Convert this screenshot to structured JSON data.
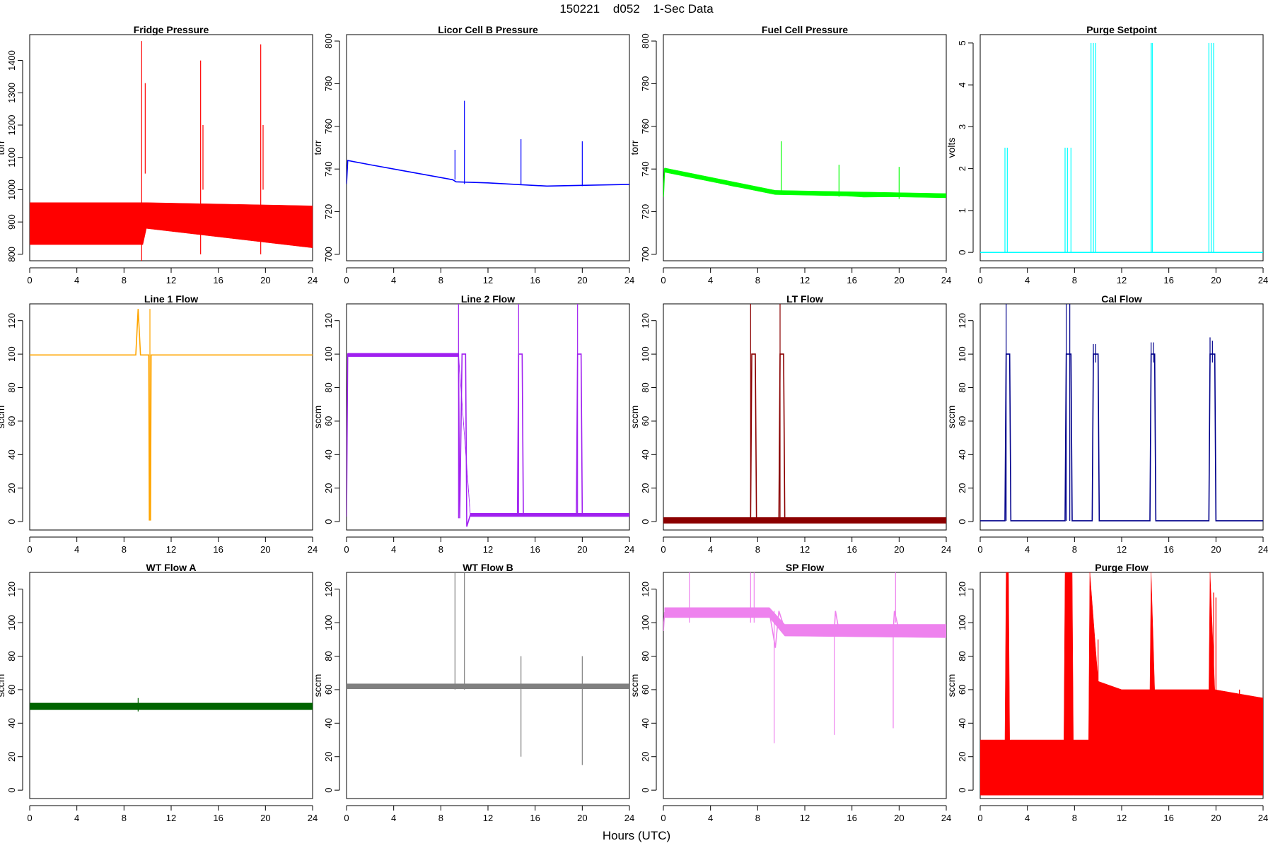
{
  "figure": {
    "title": "150221    d052    1-Sec Data",
    "xlabel": "Hours (UTC)"
  },
  "chart_data": [
    {
      "type": "line",
      "title": "Fridge Pressure",
      "ylabel": "torr",
      "color": "#ff0000",
      "xlim": [
        0,
        24
      ],
      "ylim": [
        780,
        1480
      ],
      "xticks": [
        0,
        4,
        8,
        12,
        16,
        20,
        24
      ],
      "yticks": [
        800,
        900,
        1000,
        1100,
        1200,
        1300,
        1400
      ],
      "base": [
        [
          0,
          900
        ],
        [
          24,
          900
        ]
      ],
      "band": [
        [
          0,
          830,
          960
        ],
        [
          9.6,
          830,
          960
        ],
        [
          9.9,
          880,
          960
        ],
        [
          24,
          820,
          950
        ]
      ],
      "spikes": [
        [
          9.5,
          780,
          1460
        ],
        [
          9.8,
          1050,
          1330
        ],
        [
          14.5,
          800,
          1400
        ],
        [
          14.7,
          1000,
          1200
        ],
        [
          19.6,
          800,
          1450
        ],
        [
          19.8,
          1000,
          1200
        ]
      ]
    },
    {
      "type": "line",
      "title": "Licor Cell B Pressure",
      "ylabel": "torr",
      "color": "#0000ff",
      "xlim": [
        0,
        24
      ],
      "ylim": [
        697,
        803
      ],
      "xticks": [
        0,
        4,
        8,
        12,
        16,
        20,
        24
      ],
      "yticks": [
        700,
        720,
        740,
        760,
        780,
        800
      ],
      "base": [
        [
          0,
          733
        ],
        [
          0.1,
          744
        ],
        [
          2,
          742
        ],
        [
          5,
          739
        ],
        [
          9,
          735
        ],
        [
          9.3,
          734
        ],
        [
          12,
          733.5
        ],
        [
          17,
          732
        ],
        [
          24,
          732.8
        ]
      ],
      "band": [],
      "spikes": [
        [
          9.2,
          735,
          749
        ],
        [
          10,
          733,
          772
        ],
        [
          14.8,
          733,
          754
        ],
        [
          20,
          732,
          753
        ]
      ]
    },
    {
      "type": "line",
      "title": "Fuel Cell Pressure",
      "ylabel": "torr",
      "color": "#00ff00",
      "xlim": [
        0,
        24
      ],
      "ylim": [
        697,
        803
      ],
      "xticks": [
        0,
        4,
        8,
        12,
        16,
        20,
        24
      ],
      "yticks": [
        700,
        720,
        740,
        760,
        780,
        800
      ],
      "base": [
        [
          0,
          727
        ],
        [
          0.1,
          740
        ],
        [
          2,
          737
        ],
        [
          6,
          732
        ],
        [
          9.5,
          729
        ],
        [
          12,
          729
        ],
        [
          17,
          727
        ],
        [
          24,
          727.5
        ]
      ],
      "band": [
        [
          0.1,
          738.5,
          740.5
        ],
        [
          9.5,
          728,
          730
        ],
        [
          24,
          726.5,
          728.5
        ]
      ],
      "spikes": [
        [
          10,
          728,
          753
        ],
        [
          14.9,
          727,
          742
        ],
        [
          20,
          726,
          741
        ]
      ]
    },
    {
      "type": "line",
      "title": "Purge Setpoint",
      "ylabel": "volts",
      "color": "#00ffff",
      "xlim": [
        0,
        24
      ],
      "ylim": [
        -0.2,
        5.2
      ],
      "xticks": [
        0,
        4,
        8,
        12,
        16,
        20,
        24
      ],
      "yticks": [
        0,
        1,
        2,
        3,
        4,
        5
      ],
      "base": [
        [
          0,
          0
        ],
        [
          24,
          0
        ]
      ],
      "band": [],
      "spikes": [
        [
          2.1,
          0,
          2.5
        ],
        [
          2.3,
          0,
          2.5
        ],
        [
          7.2,
          0,
          2.5
        ],
        [
          7.4,
          0,
          2.5
        ],
        [
          7.7,
          0,
          2.5
        ],
        [
          9.4,
          0,
          5
        ],
        [
          9.6,
          0,
          5
        ],
        [
          9.8,
          0,
          5
        ],
        [
          14.5,
          0,
          5
        ],
        [
          14.6,
          0,
          5
        ],
        [
          19.4,
          0,
          5
        ],
        [
          19.6,
          0,
          5
        ],
        [
          19.8,
          0,
          5
        ]
      ]
    },
    {
      "type": "line",
      "title": "Line 1 Flow",
      "ylabel": "sccm",
      "color": "#ffa500",
      "xlim": [
        0,
        24
      ],
      "ylim": [
        -5,
        130
      ],
      "xticks": [
        0,
        4,
        8,
        12,
        16,
        20,
        24
      ],
      "yticks": [
        0,
        20,
        40,
        60,
        80,
        100,
        120
      ],
      "base": [
        [
          0,
          99.5
        ],
        [
          9,
          99.5
        ],
        [
          9.2,
          127
        ],
        [
          9.4,
          99.5
        ],
        [
          10.1,
          99.5
        ],
        [
          10.15,
          1
        ],
        [
          10.25,
          1
        ],
        [
          10.3,
          99.5
        ],
        [
          24,
          99.5
        ]
      ],
      "band": [],
      "spikes": [
        [
          10.2,
          1,
          127
        ]
      ]
    },
    {
      "type": "line",
      "title": "Line 2 Flow",
      "ylabel": "sccm",
      "color": "#a020f0",
      "xlim": [
        0,
        24
      ],
      "ylim": [
        -5,
        130
      ],
      "xticks": [
        0,
        4,
        8,
        12,
        16,
        20,
        24
      ],
      "yticks": [
        0,
        20,
        40,
        60,
        80,
        100,
        120
      ],
      "base": [
        [
          0,
          3
        ],
        [
          0.1,
          100
        ],
        [
          9.5,
          100
        ],
        [
          9.6,
          2
        ],
        [
          9.8,
          100
        ],
        [
          10.1,
          100
        ],
        [
          10.2,
          -3
        ],
        [
          10.5,
          4
        ],
        [
          14.5,
          4
        ],
        [
          14.6,
          100
        ],
        [
          14.9,
          100
        ],
        [
          15,
          4
        ],
        [
          19.5,
          4
        ],
        [
          19.6,
          100
        ],
        [
          19.9,
          100
        ],
        [
          20,
          4
        ],
        [
          24,
          4
        ]
      ],
      "band": [
        [
          0.1,
          98.5,
          100.5
        ],
        [
          9.5,
          98.5,
          100.5
        ],
        [
          10.5,
          3,
          5
        ],
        [
          24,
          3,
          5
        ]
      ],
      "spikes": [
        [
          9.5,
          2,
          130
        ],
        [
          14.6,
          4,
          130
        ],
        [
          19.6,
          4,
          130
        ]
      ]
    },
    {
      "type": "line",
      "title": "LT Flow",
      "ylabel": "sccm",
      "color": "#8b0000",
      "xlim": [
        0,
        24
      ],
      "ylim": [
        -5,
        130
      ],
      "xticks": [
        0,
        4,
        8,
        12,
        16,
        20,
        24
      ],
      "yticks": [
        0,
        20,
        40,
        60,
        80,
        100,
        120
      ],
      "base": [
        [
          0,
          1
        ],
        [
          7.4,
          1
        ],
        [
          7.5,
          100
        ],
        [
          7.8,
          100
        ],
        [
          7.9,
          1
        ],
        [
          9.8,
          1
        ],
        [
          9.9,
          100
        ],
        [
          10.2,
          100
        ],
        [
          10.3,
          1
        ],
        [
          24,
          1
        ]
      ],
      "band": [
        [
          0,
          -1,
          2.5
        ],
        [
          24,
          -1,
          2.5
        ]
      ],
      "spikes": [
        [
          7.4,
          1,
          130
        ],
        [
          9.9,
          1,
          130
        ]
      ]
    },
    {
      "type": "line",
      "title": "Cal Flow",
      "ylabel": "sccm",
      "color": "#00008b",
      "xlim": [
        0,
        24
      ],
      "ylim": [
        -5,
        130
      ],
      "xticks": [
        0,
        4,
        8,
        12,
        16,
        20,
        24
      ],
      "yticks": [
        0,
        20,
        40,
        60,
        80,
        100,
        120
      ],
      "base": [
        [
          0,
          0.5
        ],
        [
          2.1,
          0.5
        ],
        [
          2.2,
          100
        ],
        [
          2.5,
          100
        ],
        [
          2.6,
          0.5
        ],
        [
          7.2,
          0.5
        ],
        [
          7.3,
          100
        ],
        [
          7.7,
          100
        ],
        [
          7.8,
          0.5
        ],
        [
          9.5,
          0.5
        ],
        [
          9.6,
          100
        ],
        [
          10,
          100
        ],
        [
          10.1,
          0.5
        ],
        [
          14.4,
          0.5
        ],
        [
          14.5,
          100
        ],
        [
          14.8,
          100
        ],
        [
          14.9,
          0.5
        ],
        [
          19.4,
          0.5
        ],
        [
          19.5,
          100
        ],
        [
          19.9,
          100
        ],
        [
          20,
          0.5
        ],
        [
          24,
          0.5
        ]
      ],
      "band": [],
      "spikes": [
        [
          2.2,
          0.5,
          130
        ],
        [
          7.3,
          0.5,
          130
        ],
        [
          7.6,
          0.5,
          130
        ],
        [
          9.6,
          95,
          106
        ],
        [
          9.8,
          95,
          106
        ],
        [
          14.5,
          95,
          107
        ],
        [
          14.7,
          95,
          107
        ],
        [
          19.5,
          95,
          110
        ],
        [
          19.7,
          95,
          108
        ]
      ]
    },
    {
      "type": "line",
      "title": "WT Flow A",
      "ylabel": "sccm",
      "color": "#006400",
      "xlim": [
        0,
        24
      ],
      "ylim": [
        -5,
        130
      ],
      "xticks": [
        0,
        4,
        8,
        12,
        16,
        20,
        24
      ],
      "yticks": [
        0,
        20,
        40,
        60,
        80,
        100,
        120
      ],
      "base": [
        [
          0,
          50
        ],
        [
          24,
          50
        ]
      ],
      "band": [
        [
          0,
          48,
          52
        ],
        [
          24,
          48,
          52
        ]
      ],
      "spikes": [
        [
          9.2,
          47,
          55
        ]
      ]
    },
    {
      "type": "line",
      "title": "WT Flow B",
      "ylabel": "sccm",
      "color": "#808080",
      "xlim": [
        0,
        24
      ],
      "ylim": [
        -5,
        130
      ],
      "xticks": [
        0,
        4,
        8,
        12,
        16,
        20,
        24
      ],
      "yticks": [
        0,
        20,
        40,
        60,
        80,
        100,
        120
      ],
      "base": [
        [
          0,
          62
        ],
        [
          24,
          62
        ]
      ],
      "band": [
        [
          0,
          60.5,
          63.5
        ],
        [
          24,
          60.5,
          63.5
        ]
      ],
      "spikes": [
        [
          9.2,
          60,
          130
        ],
        [
          10,
          60,
          130
        ],
        [
          14.8,
          20,
          80
        ],
        [
          20,
          15,
          80
        ]
      ]
    },
    {
      "type": "line",
      "title": "SP Flow",
      "ylabel": "sccm",
      "color": "#ee82ee",
      "xlim": [
        0,
        24
      ],
      "ylim": [
        -5,
        130
      ],
      "xticks": [
        0,
        4,
        8,
        12,
        16,
        20,
        24
      ],
      "yticks": [
        0,
        20,
        40,
        60,
        80,
        100,
        120
      ],
      "base": [
        [
          0,
          95
        ],
        [
          0.1,
          106
        ],
        [
          9,
          106
        ],
        [
          9.5,
          85
        ],
        [
          9.8,
          107
        ],
        [
          10.3,
          96
        ],
        [
          14.5,
          95
        ],
        [
          14.6,
          107
        ],
        [
          14.9,
          95
        ],
        [
          19.5,
          95
        ],
        [
          19.6,
          107
        ],
        [
          20,
          95
        ],
        [
          24,
          95
        ]
      ],
      "band": [
        [
          0.1,
          103,
          109
        ],
        [
          9,
          103,
          109
        ],
        [
          10.3,
          92,
          99
        ],
        [
          24,
          91,
          99
        ]
      ],
      "spikes": [
        [
          2.2,
          100,
          130
        ],
        [
          7.4,
          100,
          130
        ],
        [
          7.7,
          100,
          130
        ],
        [
          9.4,
          28,
          107
        ],
        [
          14.5,
          33,
          95
        ],
        [
          19.5,
          37,
          95
        ],
        [
          19.7,
          100,
          130
        ]
      ]
    },
    {
      "type": "line",
      "title": "Purge Flow",
      "ylabel": "sccm",
      "color": "#ff0000",
      "xlim": [
        0,
        24
      ],
      "ylim": [
        -5,
        130
      ],
      "xticks": [
        0,
        4,
        8,
        12,
        16,
        20,
        24
      ],
      "yticks": [
        0,
        20,
        40,
        60,
        80,
        100,
        120
      ],
      "base": [
        [
          0,
          15
        ],
        [
          24,
          15
        ]
      ],
      "band": [
        [
          0,
          -3,
          30
        ],
        [
          2.1,
          -3,
          30
        ],
        [
          2.2,
          -3,
          130
        ],
        [
          2.4,
          -3,
          130
        ],
        [
          2.5,
          -3,
          30
        ],
        [
          7.1,
          -3,
          30
        ],
        [
          7.2,
          -3,
          130
        ],
        [
          7.8,
          -3,
          130
        ],
        [
          7.9,
          -3,
          30
        ],
        [
          9.2,
          -3,
          30
        ],
        [
          9.3,
          -3,
          130
        ],
        [
          10,
          -3,
          65
        ],
        [
          12,
          -3,
          60
        ],
        [
          14.4,
          -3,
          60
        ],
        [
          14.5,
          -3,
          130
        ],
        [
          14.8,
          -3,
          60
        ],
        [
          19.4,
          -3,
          60
        ],
        [
          19.5,
          -3,
          130
        ],
        [
          19.9,
          -3,
          60
        ],
        [
          24,
          -3,
          55
        ]
      ],
      "spikes": [
        [
          10,
          0,
          90
        ],
        [
          19.8,
          0,
          118
        ],
        [
          20,
          0,
          115
        ],
        [
          22,
          0,
          60
        ]
      ]
    }
  ]
}
